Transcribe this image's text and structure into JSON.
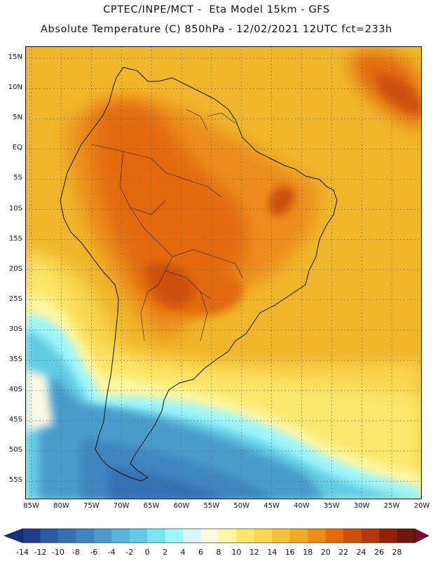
{
  "header": {
    "line1": "CPTEC/INPE/MCT -  Eta Model 15km - GFS",
    "line2": "Absolute Temperature (C) 850hPa - 12/02/2021 12UTC fct=233h"
  },
  "map": {
    "projection": "lat-lon",
    "lat_range": [
      -58,
      17
    ],
    "lon_range": [
      -86,
      -20
    ],
    "lat_labels": [
      "15N",
      "10N",
      "5N",
      "EQ",
      "5S",
      "10S",
      "15S",
      "20S",
      "25S",
      "30S",
      "35S",
      "40S",
      "45S",
      "50S",
      "55S"
    ],
    "lat_values": [
      15,
      10,
      5,
      0,
      -5,
      -10,
      -15,
      -20,
      -25,
      -30,
      -35,
      -40,
      -45,
      -50,
      -55
    ],
    "lon_labels": [
      "85W",
      "80W",
      "75W",
      "70W",
      "65W",
      "60W",
      "55W",
      "50W",
      "45W",
      "40W",
      "35W",
      "30W",
      "25W",
      "20W"
    ],
    "lon_values": [
      -85,
      -80,
      -75,
      -70,
      -65,
      -60,
      -55,
      -50,
      -45,
      -40,
      -35,
      -30,
      -25,
      -20
    ]
  },
  "colorbar": {
    "labels": [
      "-14",
      "-12",
      "-10",
      "-8",
      "-6",
      "-4",
      "-2",
      "0",
      "2",
      "4",
      "6",
      "8",
      "10",
      "12",
      "14",
      "16",
      "18",
      "20",
      "22",
      "24",
      "26",
      "28"
    ],
    "colors": [
      "#203a8c",
      "#2c5aa3",
      "#3570b3",
      "#3f85bf",
      "#4a9bcb",
      "#57b5d8",
      "#62cce6",
      "#7ae4f2",
      "#9df6fb",
      "#d8f6fd",
      "#fff9e4",
      "#fef6a2",
      "#fbe86c",
      "#f9d650",
      "#f3c13c",
      "#f0ab26",
      "#ec8d1a",
      "#e26b10",
      "#cd4f0c",
      "#b2370a",
      "#8f2209",
      "#6e160c"
    ],
    "under_color": "#17307e",
    "over_color": "#7a0c2a"
  }
}
